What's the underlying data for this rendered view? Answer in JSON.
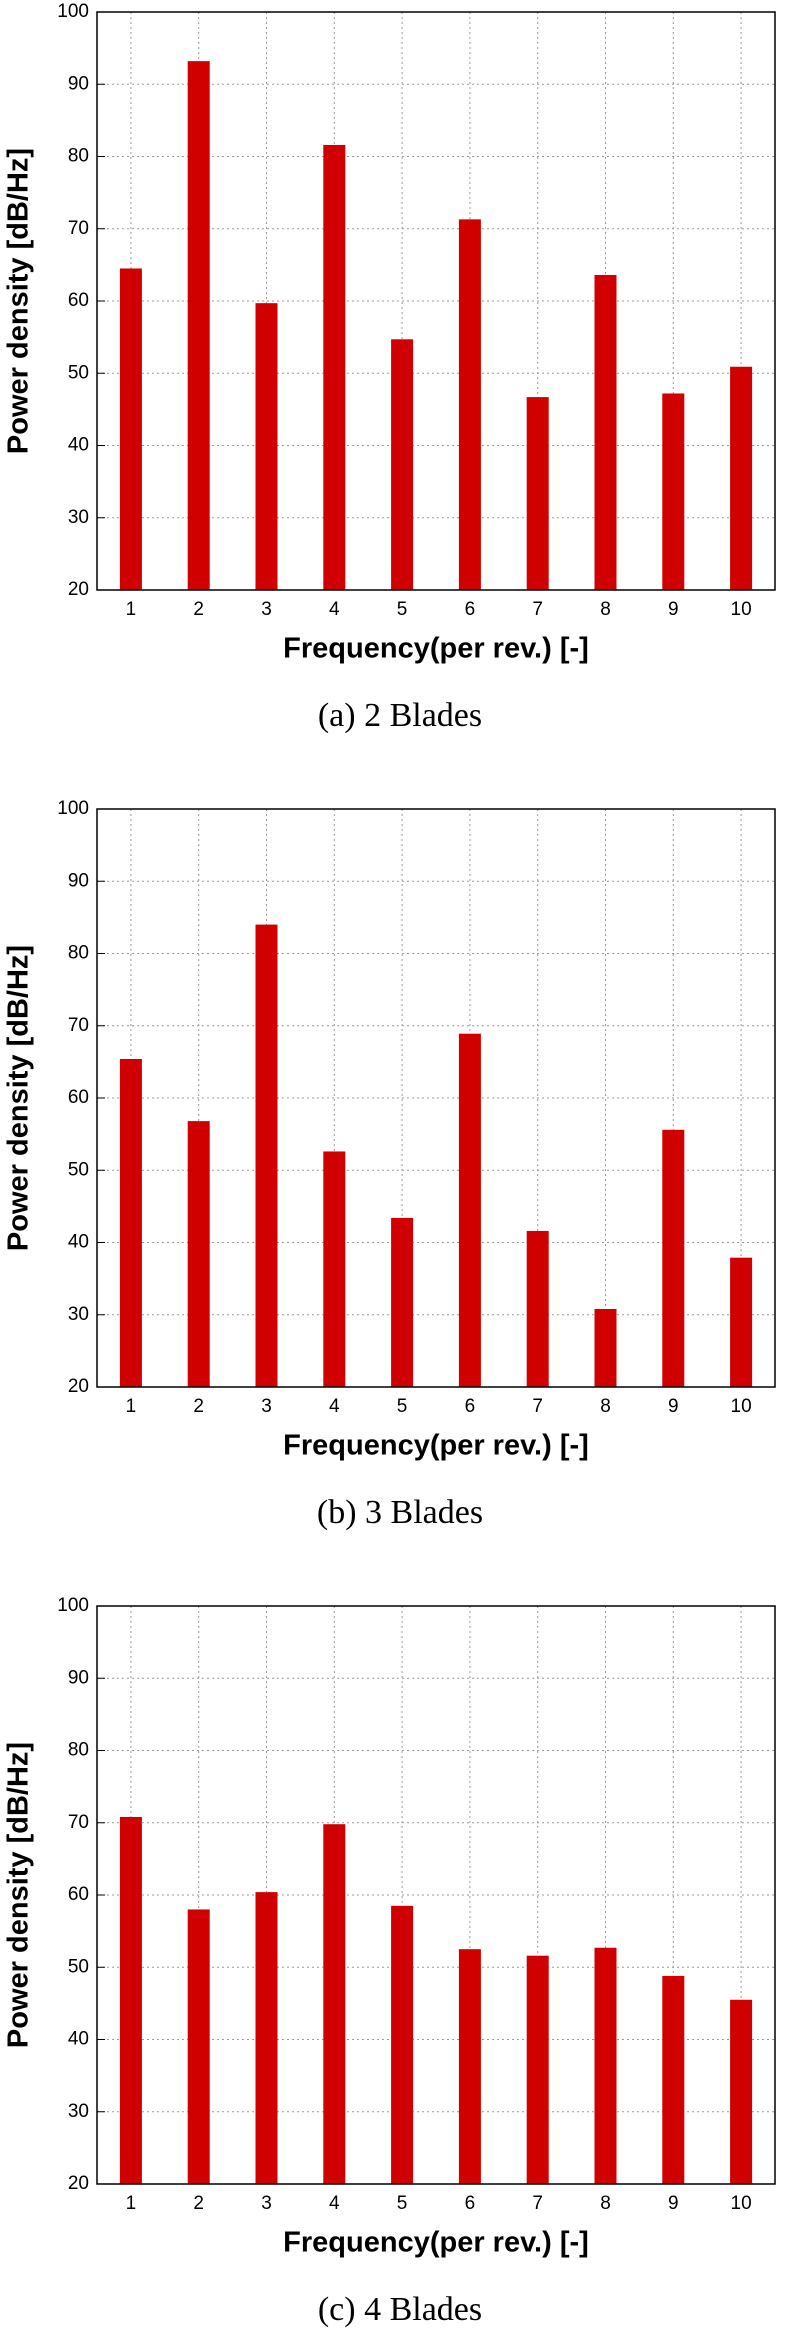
{
  "chart_data": [
    {
      "type": "bar",
      "caption": "(a)  2  Blades",
      "x_label": "Frequency(per rev.) [-]",
      "y_label": "Power density [dB/Hz]",
      "categories": [
        "1",
        "2",
        "3",
        "4",
        "5",
        "6",
        "7",
        "8",
        "9",
        "10"
      ],
      "values": [
        64.5,
        93.2,
        59.7,
        81.6,
        54.7,
        71.3,
        46.7,
        63.6,
        47.2,
        50.9
      ],
      "color": "#d00000",
      "ylim": [
        20,
        100
      ],
      "yticks": [
        20,
        30,
        40,
        50,
        60,
        70,
        80,
        90,
        100
      ],
      "grid": true
    },
    {
      "type": "bar",
      "caption": "(b)  3  Blades",
      "x_label": "Frequency(per rev.) [-]",
      "y_label": "Power density [dB/Hz]",
      "categories": [
        "1",
        "2",
        "3",
        "4",
        "5",
        "6",
        "7",
        "8",
        "9",
        "10"
      ],
      "values": [
        65.4,
        56.8,
        84.0,
        52.6,
        43.4,
        68.9,
        41.6,
        30.8,
        55.6,
        37.9
      ],
      "color": "#d00000",
      "ylim": [
        20,
        100
      ],
      "yticks": [
        20,
        30,
        40,
        50,
        60,
        70,
        80,
        90,
        100
      ],
      "grid": true
    },
    {
      "type": "bar",
      "caption": "(c)  4  Blades",
      "x_label": "Frequency(per rev.) [-]",
      "y_label": "Power density [dB/Hz]",
      "categories": [
        "1",
        "2",
        "3",
        "4",
        "5",
        "6",
        "7",
        "8",
        "9",
        "10"
      ],
      "values": [
        70.8,
        58.0,
        60.4,
        69.8,
        58.5,
        52.5,
        51.6,
        52.7,
        48.8,
        45.5
      ],
      "color": "#d00000",
      "ylim": [
        20,
        100
      ],
      "yticks": [
        20,
        30,
        40,
        50,
        60,
        70,
        80,
        90,
        100
      ],
      "grid": true
    }
  ]
}
